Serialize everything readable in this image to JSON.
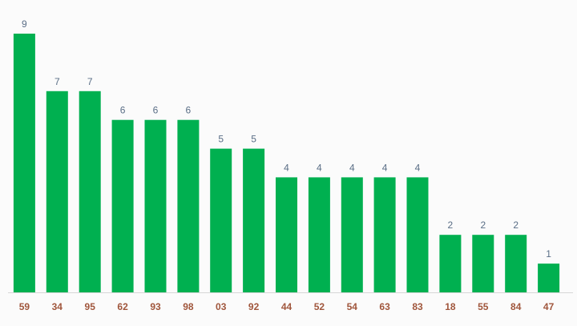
{
  "chart_data": {
    "type": "bar",
    "categories": [
      "59",
      "34",
      "95",
      "62",
      "93",
      "98",
      "03",
      "92",
      "44",
      "52",
      "54",
      "63",
      "83",
      "18",
      "55",
      "84",
      "47"
    ],
    "values": [
      9,
      7,
      7,
      6,
      6,
      6,
      5,
      5,
      4,
      4,
      4,
      4,
      4,
      2,
      2,
      2,
      1
    ],
    "title": "",
    "xlabel": "",
    "ylabel": "",
    "ylim": [
      0,
      9
    ],
    "grid": false,
    "legend": "none",
    "bar_color": "#00b050",
    "value_label_color": "#5a6e86",
    "category_label_color": "#a0563c"
  }
}
